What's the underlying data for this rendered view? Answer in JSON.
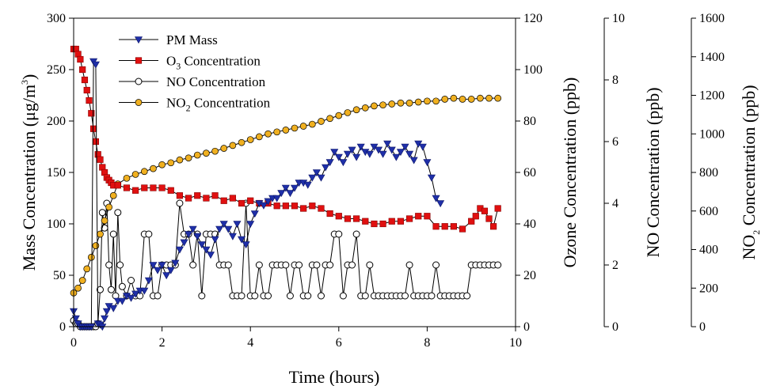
{
  "chart_data": {
    "type": "line",
    "x_axis": {
      "label": "Time (hours)",
      "range": [
        0,
        10
      ],
      "ticks": [
        0,
        2,
        4,
        6,
        8,
        10
      ]
    },
    "y_axes": [
      {
        "id": "mass",
        "label_main": "Mass Concentration (μg/m",
        "label_sup": "3",
        "label_end": ")",
        "range": [
          0,
          300
        ],
        "ticks": [
          0,
          50,
          100,
          150,
          200,
          250,
          300
        ]
      },
      {
        "id": "ozone",
        "label": "Ozone Concentration (ppb)",
        "range": [
          0,
          120
        ],
        "ticks": [
          0,
          20,
          40,
          60,
          80,
          100,
          120
        ]
      },
      {
        "id": "no",
        "label": "NO Concentration (ppb)",
        "range": [
          0,
          10
        ],
        "ticks": [
          0,
          2,
          4,
          6,
          8,
          10
        ]
      },
      {
        "id": "no2",
        "label_main": "NO",
        "label_sub": "2",
        "label_end": " Concentration (ppb)",
        "range": [
          0,
          1600
        ],
        "ticks": [
          0,
          200,
          400,
          600,
          800,
          1000,
          1200,
          1400,
          1600
        ]
      }
    ],
    "legend": {
      "placement": "top-left",
      "entries": [
        {
          "main": "PM Mass",
          "sub": "",
          "end": ""
        },
        {
          "main": "O",
          "sub": "3",
          "end": " Concentration"
        },
        {
          "main": "NO Concentration",
          "sub": "",
          "end": ""
        },
        {
          "main": "NO",
          "sub": "2",
          "end": " Concentration"
        }
      ]
    },
    "series": [
      {
        "name": "PM Mass",
        "axis": "mass",
        "marker": "triangle-down",
        "color": "#1f2fa8",
        "x": [
          0,
          0.05,
          0.1,
          0.15,
          0.2,
          0.25,
          0.3,
          0.35,
          0.4,
          0.45,
          0.5,
          0.55,
          0.6,
          0.65,
          0.7,
          0.75,
          0.8,
          0.9,
          1.0,
          1.1,
          1.2,
          1.3,
          1.4,
          1.5,
          1.6,
          1.7,
          1.8,
          1.9,
          2.0,
          2.1,
          2.2,
          2.3,
          2.4,
          2.5,
          2.6,
          2.7,
          2.8,
          2.9,
          3.0,
          3.1,
          3.2,
          3.3,
          3.4,
          3.5,
          3.6,
          3.7,
          3.8,
          3.9,
          4.0,
          4.1,
          4.2,
          4.3,
          4.4,
          4.5,
          4.6,
          4.7,
          4.8,
          4.9,
          5.0,
          5.1,
          5.2,
          5.3,
          5.4,
          5.5,
          5.6,
          5.7,
          5.8,
          5.9,
          6.0,
          6.1,
          6.2,
          6.3,
          6.4,
          6.5,
          6.6,
          6.7,
          6.8,
          6.9,
          7.0,
          7.1,
          7.2,
          7.3,
          7.4,
          7.5,
          7.6,
          7.7,
          7.8,
          7.9,
          8.0,
          8.1,
          8.2,
          8.3
        ],
        "y": [
          15,
          8,
          3,
          0,
          0,
          0,
          0,
          0,
          0,
          258,
          255,
          3,
          2,
          0,
          8,
          15,
          20,
          18,
          25,
          25,
          30,
          28,
          32,
          35,
          35,
          45,
          60,
          55,
          60,
          50,
          55,
          62,
          75,
          82,
          90,
          95,
          88,
          80,
          75,
          70,
          85,
          95,
          100,
          95,
          88,
          100,
          85,
          80,
          100,
          110,
          120,
          118,
          122,
          125,
          125,
          130,
          135,
          130,
          135,
          140,
          140,
          138,
          145,
          150,
          145,
          155,
          160,
          170,
          165,
          160,
          168,
          172,
          165,
          175,
          170,
          168,
          175,
          172,
          168,
          178,
          172,
          165,
          170,
          175,
          168,
          162,
          178,
          175,
          160,
          145,
          125,
          120
        ]
      },
      {
        "name": "O3 Concentration",
        "axis": "ozone",
        "marker": "square",
        "color": "#e01010",
        "x": [
          0,
          0.05,
          0.1,
          0.15,
          0.2,
          0.25,
          0.3,
          0.35,
          0.4,
          0.45,
          0.5,
          0.55,
          0.6,
          0.65,
          0.7,
          0.75,
          0.8,
          0.85,
          0.9,
          1.0,
          1.2,
          1.4,
          1.6,
          1.8,
          2.0,
          2.2,
          2.4,
          2.6,
          2.8,
          3.0,
          3.2,
          3.4,
          3.6,
          3.8,
          4.0,
          4.2,
          4.4,
          4.6,
          4.8,
          5.0,
          5.2,
          5.4,
          5.6,
          5.8,
          6.0,
          6.2,
          6.4,
          6.6,
          6.8,
          7.0,
          7.2,
          7.4,
          7.6,
          7.8,
          8.0,
          8.2,
          8.4,
          8.6,
          8.8,
          9.0,
          9.1,
          9.2,
          9.3,
          9.4,
          9.5,
          9.6
        ],
        "y": [
          108,
          108,
          106,
          104,
          100,
          96,
          92,
          88,
          83,
          77,
          72,
          67,
          65,
          62,
          60,
          58,
          57,
          56,
          55,
          55,
          54,
          53,
          54,
          54,
          54,
          53,
          51,
          50,
          51,
          50,
          51,
          49,
          50,
          48,
          49,
          48,
          48,
          47,
          47,
          47,
          46,
          47,
          46,
          44,
          43,
          42,
          42,
          41,
          40,
          40,
          41,
          41,
          42,
          43,
          43,
          39,
          39,
          39,
          38,
          41,
          43,
          46,
          45,
          42,
          39,
          46
        ]
      },
      {
        "name": "NO Concentration",
        "axis": "no",
        "marker": "circle-open",
        "color": "#000000",
        "x": [
          0,
          0.05,
          0.1,
          0.15,
          0.2,
          0.25,
          0.3,
          0.35,
          0.4,
          0.45,
          0.5,
          0.55,
          0.6,
          0.65,
          0.7,
          0.75,
          0.8,
          0.85,
          0.9,
          0.95,
          1.0,
          1.05,
          1.1,
          1.2,
          1.3,
          1.4,
          1.5,
          1.6,
          1.7,
          1.8,
          1.9,
          2.0,
          2.1,
          2.2,
          2.3,
          2.4,
          2.5,
          2.6,
          2.7,
          2.8,
          2.9,
          3.0,
          3.1,
          3.2,
          3.3,
          3.4,
          3.5,
          3.6,
          3.7,
          3.8,
          3.9,
          4.0,
          4.1,
          4.2,
          4.3,
          4.4,
          4.5,
          4.6,
          4.7,
          4.8,
          4.9,
          5.0,
          5.1,
          5.2,
          5.3,
          5.4,
          5.5,
          5.6,
          5.7,
          5.8,
          5.9,
          6.0,
          6.1,
          6.2,
          6.3,
          6.4,
          6.5,
          6.6,
          6.7,
          6.8,
          6.9,
          7.0,
          7.1,
          7.2,
          7.3,
          7.4,
          7.5,
          7.6,
          7.7,
          7.8,
          7.9,
          8.0,
          8.1,
          8.2,
          8.3,
          8.4,
          8.5,
          8.6,
          8.7,
          8.8,
          8.9,
          9.0,
          9.1,
          9.2,
          9.3,
          9.4,
          9.5,
          9.6
        ],
        "y": [
          0.2,
          0.1,
          0.1,
          0,
          0,
          0,
          0,
          0,
          0,
          0,
          0,
          0.1,
          1.2,
          3.7,
          3.2,
          4.0,
          2.0,
          1.2,
          3.0,
          1.0,
          3.7,
          2.0,
          1.3,
          1.0,
          1.5,
          1.0,
          1.0,
          3.0,
          3.0,
          1.0,
          1.0,
          2.0,
          2.0,
          2.0,
          2.0,
          4.0,
          3.0,
          3.0,
          2.0,
          3.0,
          1.0,
          3.0,
          3.0,
          3.0,
          2.0,
          2.0,
          2.0,
          1.0,
          1.0,
          1.0,
          4.0,
          1.0,
          1.0,
          2.0,
          1.0,
          1.0,
          2.0,
          2.0,
          2.0,
          2.0,
          1.0,
          2.0,
          2.0,
          1.0,
          1.0,
          2.0,
          2.0,
          1.0,
          2.0,
          2.0,
          3.0,
          3.0,
          1.0,
          2.0,
          2.0,
          3.0,
          1.0,
          1.0,
          2.0,
          1.0,
          1.0,
          1.0,
          1.0,
          1.0,
          1.0,
          1.0,
          1.0,
          2.0,
          1.0,
          1.0,
          1.0,
          1.0,
          1.0,
          2.0,
          1.0,
          1.0,
          1.0,
          1.0,
          1.0,
          1.0,
          1.0,
          2.0,
          2.0,
          2.0,
          2.0,
          2.0,
          2.0,
          2.0
        ]
      },
      {
        "name": "NO2 Concentration",
        "axis": "no2",
        "marker": "circle-filled",
        "color": "#f0b020",
        "x": [
          0,
          0.1,
          0.2,
          0.3,
          0.4,
          0.5,
          0.6,
          0.7,
          0.8,
          0.9,
          1.0,
          1.2,
          1.4,
          1.6,
          1.8,
          2.0,
          2.2,
          2.4,
          2.6,
          2.8,
          3.0,
          3.2,
          3.4,
          3.6,
          3.8,
          4.0,
          4.2,
          4.4,
          4.6,
          4.8,
          5.0,
          5.2,
          5.4,
          5.6,
          5.8,
          6.0,
          6.2,
          6.4,
          6.6,
          6.8,
          7.0,
          7.2,
          7.4,
          7.6,
          7.8,
          8.0,
          8.2,
          8.4,
          8.6,
          8.8,
          9.0,
          9.2,
          9.4,
          9.6
        ],
        "y": [
          175,
          200,
          240,
          300,
          360,
          420,
          480,
          550,
          620,
          680,
          740,
          770,
          790,
          805,
          820,
          840,
          850,
          865,
          875,
          890,
          900,
          910,
          925,
          940,
          955,
          970,
          985,
          1000,
          1010,
          1020,
          1030,
          1040,
          1050,
          1065,
          1080,
          1095,
          1110,
          1125,
          1135,
          1145,
          1150,
          1155,
          1160,
          1160,
          1165,
          1170,
          1170,
          1180,
          1185,
          1180,
          1180,
          1185,
          1185,
          1185
        ]
      }
    ]
  }
}
